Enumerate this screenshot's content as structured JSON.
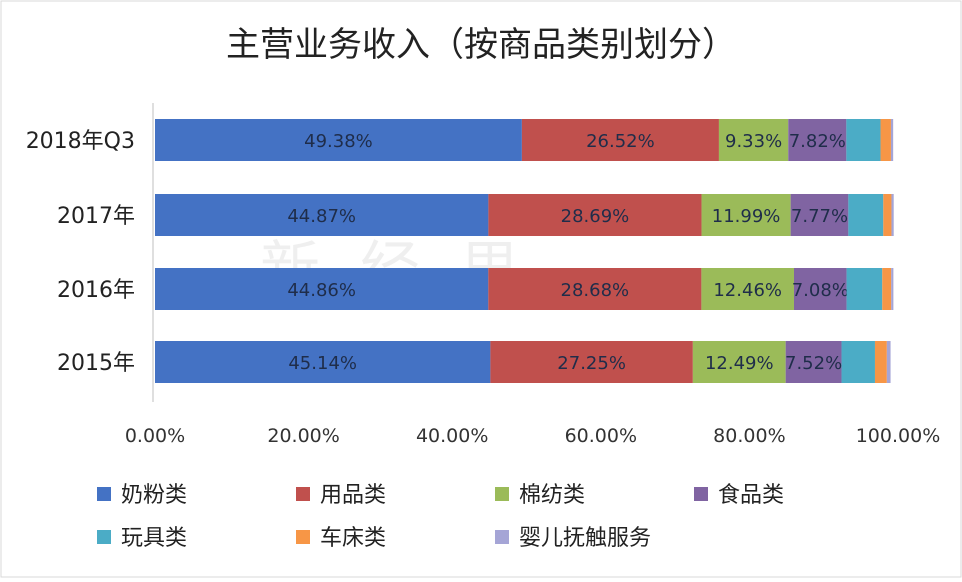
{
  "chart_data": {
    "type": "bar",
    "orientation": "horizontal",
    "stacked": "percent",
    "title": "主营业务收入（按商品类别划分）",
    "categories": [
      "2018年Q3",
      "2017年",
      "2016年",
      "2015年"
    ],
    "series": [
      {
        "name": "奶粉类",
        "color": "#4472c4",
        "values": [
          49.38,
          44.87,
          44.86,
          45.14
        ],
        "labels": [
          "49.38%",
          "44.87%",
          "44.86%",
          "45.14%"
        ]
      },
      {
        "name": "用品类",
        "color": "#c0504d",
        "values": [
          26.52,
          28.69,
          28.68,
          27.25
        ],
        "labels": [
          "26.52%",
          "28.69%",
          "28.68%",
          "27.25%"
        ]
      },
      {
        "name": "棉纺类",
        "color": "#9bbb59",
        "values": [
          9.33,
          11.99,
          12.46,
          12.49
        ],
        "labels": [
          "9.33%",
          "11.99%",
          "12.46%",
          "12.49%"
        ]
      },
      {
        "name": "食品类",
        "color": "#8064a2",
        "values": [
          7.82,
          7.77,
          7.08,
          7.52
        ],
        "labels": [
          "7.82%",
          "7.77%",
          "7.08%",
          "7.52%"
        ]
      },
      {
        "name": "玩具类",
        "color": "#4bacc6",
        "values": [
          4.6,
          4.7,
          4.8,
          4.5
        ],
        "labels": [
          "",
          "",
          "",
          ""
        ]
      },
      {
        "name": "车床类",
        "color": "#f79646",
        "values": [
          1.4,
          1.1,
          1.2,
          1.6
        ],
        "labels": [
          "",
          "",
          "",
          ""
        ]
      },
      {
        "name": "婴儿抚触服务",
        "color": "#a5a5d6",
        "values": [
          0.3,
          0.3,
          0.3,
          0.5
        ],
        "labels": [
          "",
          "",
          "",
          ""
        ]
      }
    ],
    "xlim": [
      0,
      100
    ],
    "x_ticks": [
      "0.00%",
      "20.00%",
      "40.00%",
      "60.00%",
      "80.00%",
      "100.00%"
    ],
    "grid": false,
    "legend_position": "bottom",
    "watermark": "新经思"
  }
}
